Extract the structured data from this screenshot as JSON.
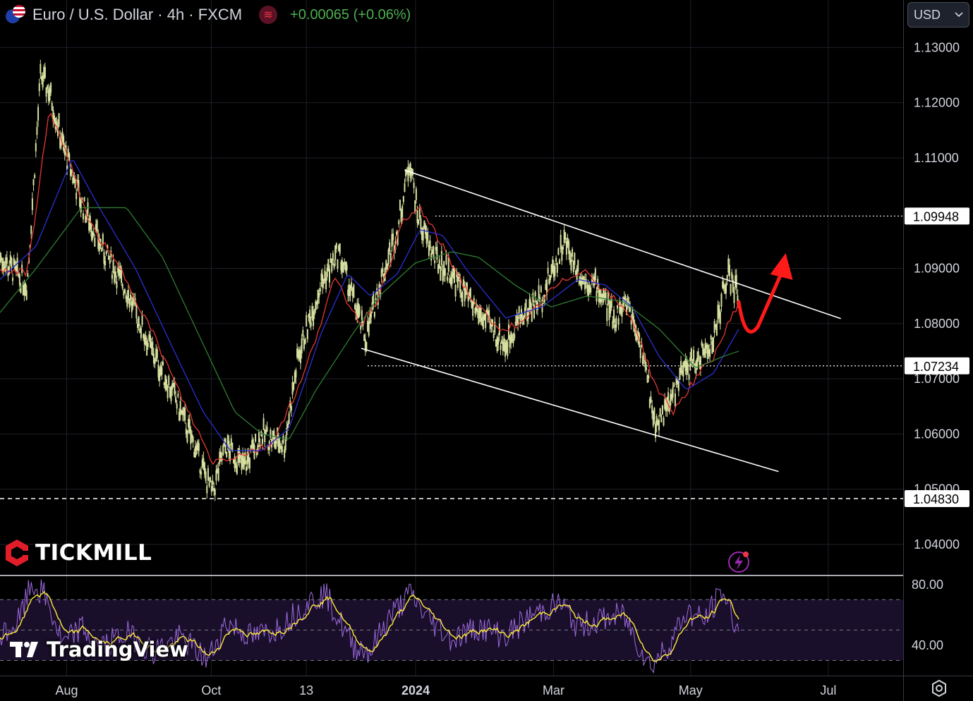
{
  "header": {
    "symbol_title": "Euro / U.S. Dollar · 4h · FXCM",
    "change_text": "+0.00065 (+0.06%)",
    "indicator_icon": "waves-icon",
    "currency_select": "USD"
  },
  "branding": {
    "broker": "TICKMILL",
    "platform": "TradingView"
  },
  "colors": {
    "background": "#000000",
    "candle": "#d8e0a0",
    "ma_fast": "#e53935",
    "ma_mid": "#2b2fd4",
    "ma_slow": "#2e7d32",
    "channel": "#ffffff",
    "arrow": "#ff1a1a",
    "rsi": "#9c6ade",
    "rsi_signal": "#ffeb3b",
    "positive": "#4caf50"
  },
  "chart_data": {
    "type": "line",
    "price_axis": {
      "ticks": [
        "1.13000",
        "1.12000",
        "1.11000",
        "1.09000",
        "1.08000",
        "1.07000",
        "1.06000",
        "1.05000",
        "1.04000"
      ],
      "ylim": [
        1.0345,
        1.1335
      ],
      "highlighted_levels": [
        {
          "label": "1.09948",
          "value": 1.09948,
          "style": "dotted"
        },
        {
          "label": "1.07234",
          "value": 1.07234,
          "style": "dotted"
        },
        {
          "label": "1.04830",
          "value": 1.0483,
          "style": "dashed"
        }
      ]
    },
    "time_axis": {
      "labels": [
        {
          "text": "Aug",
          "t": 0.0738
        },
        {
          "text": "Oct",
          "t": 0.2339
        },
        {
          "text": "13",
          "t": 0.3392
        },
        {
          "text": "2024",
          "t": 0.4602
        },
        {
          "text": "Mar",
          "t": 0.6129
        },
        {
          "text": "May",
          "t": 0.7647
        },
        {
          "text": "Jul",
          "t": 0.9171
        }
      ]
    },
    "price_path": [
      [
        0.0,
        1.092
      ],
      [
        0.03,
        1.087
      ],
      [
        0.045,
        1.125
      ],
      [
        0.055,
        1.122
      ],
      [
        0.07,
        1.112
      ],
      [
        0.09,
        1.102
      ],
      [
        0.115,
        1.093
      ],
      [
        0.14,
        1.086
      ],
      [
        0.165,
        1.076
      ],
      [
        0.19,
        1.068
      ],
      [
        0.215,
        1.058
      ],
      [
        0.235,
        1.049
      ],
      [
        0.25,
        1.058
      ],
      [
        0.27,
        1.054
      ],
      [
        0.29,
        1.06
      ],
      [
        0.315,
        1.058
      ],
      [
        0.33,
        1.074
      ],
      [
        0.355,
        1.087
      ],
      [
        0.375,
        1.093
      ],
      [
        0.39,
        1.085
      ],
      [
        0.405,
        1.077
      ],
      [
        0.42,
        1.087
      ],
      [
        0.44,
        1.097
      ],
      [
        0.454,
        1.11
      ],
      [
        0.462,
        1.1
      ],
      [
        0.48,
        1.092
      ],
      [
        0.5,
        1.089
      ],
      [
        0.52,
        1.084
      ],
      [
        0.54,
        1.08
      ],
      [
        0.56,
        1.076
      ],
      [
        0.575,
        1.081
      ],
      [
        0.6,
        1.085
      ],
      [
        0.625,
        1.095
      ],
      [
        0.645,
        1.088
      ],
      [
        0.66,
        1.087
      ],
      [
        0.68,
        1.081
      ],
      [
        0.695,
        1.084
      ],
      [
        0.71,
        1.076
      ],
      [
        0.725,
        1.062
      ],
      [
        0.74,
        1.065
      ],
      [
        0.755,
        1.071
      ],
      [
        0.775,
        1.074
      ],
      [
        0.79,
        1.077
      ],
      [
        0.805,
        1.089
      ],
      [
        0.818,
        1.085
      ]
    ],
    "series": [
      {
        "color_key": "ma_fast",
        "values": [
          [
            0.0,
            1.09
          ],
          [
            0.03,
            1.089
          ],
          [
            0.055,
            1.119
          ],
          [
            0.075,
            1.11
          ],
          [
            0.1,
            1.098
          ],
          [
            0.14,
            1.088
          ],
          [
            0.17,
            1.078
          ],
          [
            0.2,
            1.067
          ],
          [
            0.235,
            1.055
          ],
          [
            0.26,
            1.056
          ],
          [
            0.3,
            1.058
          ],
          [
            0.335,
            1.07
          ],
          [
            0.37,
            1.088
          ],
          [
            0.4,
            1.08
          ],
          [
            0.42,
            1.085
          ],
          [
            0.445,
            1.098
          ],
          [
            0.465,
            1.101
          ],
          [
            0.49,
            1.094
          ],
          [
            0.52,
            1.085
          ],
          [
            0.55,
            1.079
          ],
          [
            0.58,
            1.08
          ],
          [
            0.61,
            1.086
          ],
          [
            0.645,
            1.09
          ],
          [
            0.67,
            1.086
          ],
          [
            0.7,
            1.081
          ],
          [
            0.725,
            1.069
          ],
          [
            0.745,
            1.064
          ],
          [
            0.77,
            1.07
          ],
          [
            0.79,
            1.074
          ],
          [
            0.818,
            1.084
          ]
        ]
      },
      {
        "color_key": "ma_mid",
        "values": [
          [
            0.0,
            1.088
          ],
          [
            0.04,
            1.094
          ],
          [
            0.08,
            1.11
          ],
          [
            0.11,
            1.101
          ],
          [
            0.15,
            1.09
          ],
          [
            0.19,
            1.076
          ],
          [
            0.225,
            1.064
          ],
          [
            0.255,
            1.057
          ],
          [
            0.29,
            1.057
          ],
          [
            0.32,
            1.061
          ],
          [
            0.355,
            1.078
          ],
          [
            0.385,
            1.089
          ],
          [
            0.41,
            1.085
          ],
          [
            0.44,
            1.089
          ],
          [
            0.465,
            1.097
          ],
          [
            0.49,
            1.096
          ],
          [
            0.52,
            1.089
          ],
          [
            0.56,
            1.081
          ],
          [
            0.6,
            1.083
          ],
          [
            0.64,
            1.088
          ],
          [
            0.67,
            1.087
          ],
          [
            0.7,
            1.083
          ],
          [
            0.73,
            1.074
          ],
          [
            0.76,
            1.068
          ],
          [
            0.79,
            1.071
          ],
          [
            0.818,
            1.079
          ]
        ]
      },
      {
        "color_key": "ma_slow",
        "values": [
          [
            0.0,
            1.082
          ],
          [
            0.04,
            1.09
          ],
          [
            0.09,
            1.101
          ],
          [
            0.14,
            1.101
          ],
          [
            0.18,
            1.092
          ],
          [
            0.22,
            1.078
          ],
          [
            0.26,
            1.064
          ],
          [
            0.29,
            1.06
          ],
          [
            0.32,
            1.059
          ],
          [
            0.35,
            1.068
          ],
          [
            0.39,
            1.078
          ],
          [
            0.42,
            1.085
          ],
          [
            0.46,
            1.091
          ],
          [
            0.5,
            1.093
          ],
          [
            0.53,
            1.092
          ],
          [
            0.57,
            1.087
          ],
          [
            0.61,
            1.083
          ],
          [
            0.65,
            1.085
          ],
          [
            0.69,
            1.084
          ],
          [
            0.73,
            1.079
          ],
          [
            0.77,
            1.072
          ],
          [
            0.8,
            1.074
          ],
          [
            0.818,
            1.075
          ]
        ]
      }
    ],
    "channel_lines": [
      {
        "from": [
          0.448,
          1.1078
        ],
        "to": [
          0.931,
          1.0809
        ]
      },
      {
        "from": [
          0.4,
          1.0755
        ],
        "to": [
          0.862,
          1.0532
        ]
      }
    ],
    "projection_arrow": {
      "from": [
        0.818,
        1.0839
      ],
      "dip": [
        0.83,
        1.079
      ],
      "to": [
        0.87,
        1.092
      ]
    },
    "rsi": {
      "ticks": [
        "80.00",
        "40.00"
      ],
      "ylim": [
        20,
        85
      ],
      "band": [
        30,
        70
      ],
      "path": [
        [
          0.0,
          45
        ],
        [
          0.02,
          55
        ],
        [
          0.035,
          80
        ],
        [
          0.05,
          72
        ],
        [
          0.07,
          40
        ],
        [
          0.09,
          52
        ],
        [
          0.11,
          38
        ],
        [
          0.14,
          48
        ],
        [
          0.17,
          36
        ],
        [
          0.2,
          45
        ],
        [
          0.23,
          30
        ],
        [
          0.25,
          55
        ],
        [
          0.28,
          45
        ],
        [
          0.31,
          52
        ],
        [
          0.34,
          68
        ],
        [
          0.36,
          74
        ],
        [
          0.39,
          40
        ],
        [
          0.41,
          36
        ],
        [
          0.43,
          58
        ],
        [
          0.455,
          74
        ],
        [
          0.47,
          60
        ],
        [
          0.5,
          44
        ],
        [
          0.53,
          52
        ],
        [
          0.56,
          46
        ],
        [
          0.59,
          60
        ],
        [
          0.62,
          68
        ],
        [
          0.64,
          52
        ],
        [
          0.66,
          56
        ],
        [
          0.69,
          60
        ],
        [
          0.72,
          26
        ],
        [
          0.74,
          40
        ],
        [
          0.76,
          62
        ],
        [
          0.78,
          56
        ],
        [
          0.8,
          76
        ],
        [
          0.818,
          48
        ]
      ]
    }
  }
}
